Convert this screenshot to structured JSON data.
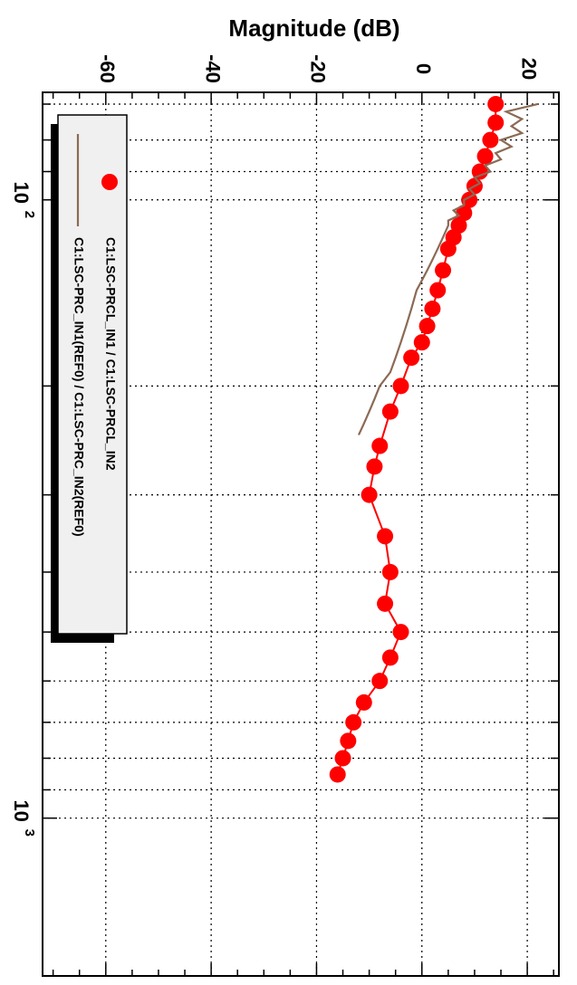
{
  "chart_data": {
    "type": "line",
    "orientation": "rotated-90-clockwise",
    "ylabel": "Magnitude (dB)",
    "xlabel": "",
    "x_scale": "log",
    "xlim": [
      67,
      1800
    ],
    "ylim": [
      -72,
      26
    ],
    "grid": true,
    "y_ticks": [
      20,
      0,
      -20,
      -40,
      -60
    ],
    "x_tick_labels": [
      {
        "value": 100,
        "base": "10",
        "exp": "2"
      },
      {
        "value": 1000,
        "base": "10",
        "exp": "3"
      }
    ],
    "legend": {
      "placement": "top-left",
      "entries": [
        {
          "label": "C1:LSC-PRCL_IN1 / C1:LSC-PRCL_IN2",
          "marker": "circle",
          "color": "#ff0000"
        },
        {
          "label": "C1:LSC-PRC_IN1(REF0) / C1:LSC-PRC_IN2(REF0)",
          "marker": "line",
          "color": "#8b6a55"
        }
      ]
    },
    "series": [
      {
        "name": "C1:LSC-PRCL_IN1 / C1:LSC-PRCL_IN2",
        "color": "#ff0000",
        "marker": "circle",
        "x": [
          70,
          75,
          80,
          85,
          90,
          95,
          100,
          105,
          110,
          115,
          120,
          130,
          140,
          150,
          160,
          170,
          180,
          200,
          220,
          250,
          270,
          300,
          350,
          400,
          450,
          500,
          550,
          600,
          650,
          700,
          750,
          800,
          850
        ],
        "y": [
          14,
          14,
          13,
          12,
          11,
          10,
          9,
          8,
          7,
          6,
          5,
          4,
          3,
          2,
          1,
          0,
          -2,
          -4,
          -6,
          -8,
          -9,
          -10,
          -7,
          -6,
          -7,
          -4,
          -6,
          -8,
          -11,
          -13,
          -14,
          -15,
          -16
        ]
      },
      {
        "name": "C1:LSC-PRC_IN1(REF0) / C1:LSC-PRC_IN2(REF0)",
        "color": "#8b6a55",
        "marker": "none",
        "x": [
          70,
          72,
          74,
          76,
          78,
          80,
          82,
          84,
          86,
          88,
          90,
          92,
          94,
          96,
          98,
          100,
          102,
          104,
          106,
          108,
          110,
          115,
          120,
          125,
          130,
          135,
          140,
          150,
          160,
          170,
          180,
          190,
          200,
          210,
          220,
          230,
          240
        ],
        "y": [
          22,
          16,
          19,
          17,
          19,
          15,
          17,
          14,
          15,
          12,
          13,
          10,
          11,
          9,
          10,
          8,
          8,
          6,
          7,
          5,
          5,
          4,
          3,
          2,
          1,
          0,
          -1,
          -2,
          -3,
          -4,
          -5,
          -6,
          -8,
          -9,
          -10,
          -11,
          -12
        ]
      }
    ]
  }
}
